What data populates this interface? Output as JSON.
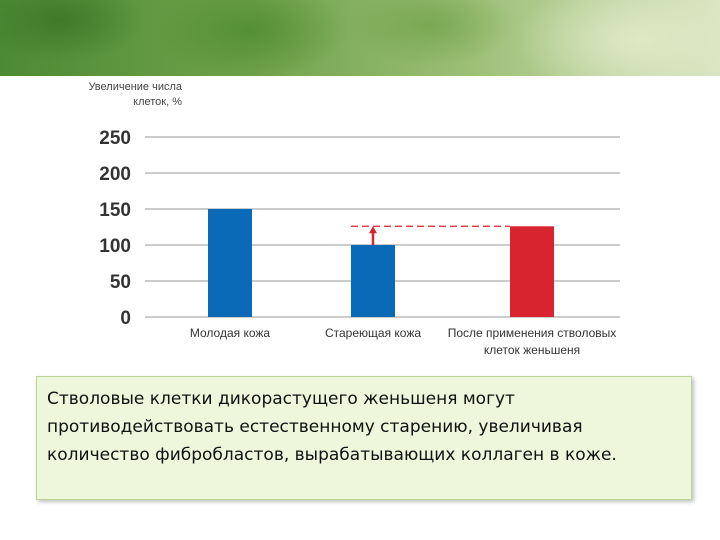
{
  "chart_data": {
    "type": "bar",
    "ylabel": "Увеличение числа клеток, %",
    "categories": [
      "Молодая кожа",
      "Стареющая кожа",
      "После применения стволовых клеток женьшеня"
    ],
    "values": [
      150,
      100,
      126
    ],
    "yticks": [
      0,
      50,
      100,
      150,
      200,
      250
    ],
    "ylim": [
      0,
      250
    ],
    "grid": true,
    "colors": [
      "#0b6ab8",
      "#0b6ab8",
      "#d7242e"
    ],
    "annotation": {
      "type": "dashed-line-with-arrow",
      "from": 100,
      "to": 126,
      "color": "#d7242e"
    }
  },
  "caption": "Стволовые клетки дикорастущего женьшеня могут противодействовать естественному старению, увеличивая количество фибробластов, вырабатывающих коллаген в коже."
}
